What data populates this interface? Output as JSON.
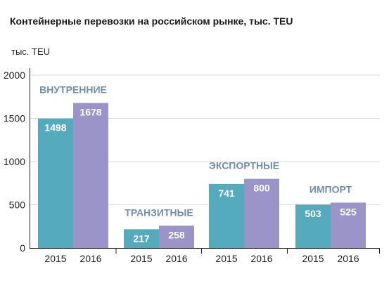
{
  "chart_data": {
    "type": "bar",
    "title": "Контейнерные перевозки на российском рынке, тыс. TEU",
    "ylabel": "тыс. TEU",
    "ylim": [
      0,
      2000
    ],
    "yticks": [
      0,
      500,
      1000,
      1500,
      2000
    ],
    "grid": true,
    "groups": [
      {
        "label": "ВНУТРЕННИЕ",
        "years": [
          "2015",
          "2016"
        ],
        "values": [
          1498,
          1678
        ]
      },
      {
        "label": "ТРАНЗИТНЫЕ",
        "years": [
          "2015",
          "2016"
        ],
        "values": [
          217,
          258
        ]
      },
      {
        "label": "ЭКСПОРТНЫЕ",
        "years": [
          "2015",
          "2016"
        ],
        "values": [
          741,
          800
        ]
      },
      {
        "label": "ИМПОРТ",
        "years": [
          "2015",
          "2016"
        ],
        "values": [
          503,
          525
        ]
      }
    ],
    "colors": {
      "2015": "#55aabd",
      "2016": "#9b94c9",
      "grid": "#d9d9d9",
      "axis": "#222222",
      "group_label": "#6f8db0"
    }
  }
}
